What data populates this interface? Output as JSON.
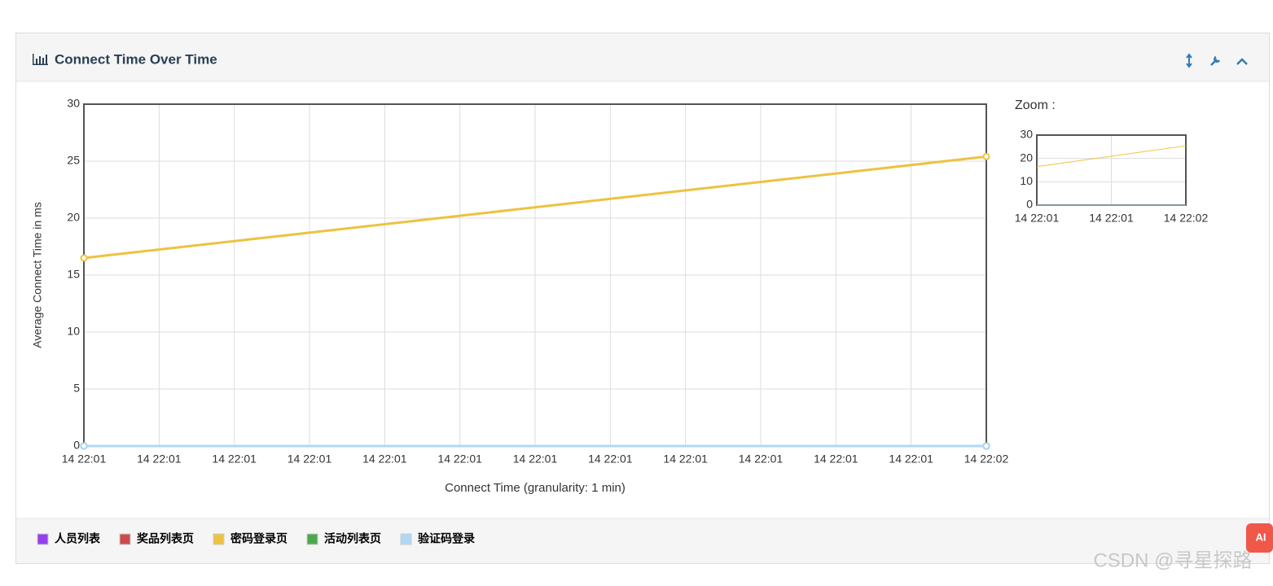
{
  "panel": {
    "title": "Connect Time Over Time"
  },
  "chart_data": {
    "type": "line",
    "x": [
      "14 22:01",
      "14 22:02"
    ],
    "xticks": [
      "14 22:01",
      "14 22:01",
      "14 22:01",
      "14 22:01",
      "14 22:01",
      "14 22:01",
      "14 22:01",
      "14 22:01",
      "14 22:01",
      "14 22:01",
      "14 22:01",
      "14 22:01",
      "14 22:02"
    ],
    "xlabel": "Connect Time (granularity: 1 min)",
    "ylabel": "Average Connect Time in ms",
    "ylim": [
      0,
      30
    ],
    "yticks": [
      0,
      5,
      10,
      15,
      20,
      25,
      30
    ],
    "grid": true,
    "series": [
      {
        "name": "人员列表",
        "color": "#9440ed",
        "values": [
          0,
          0
        ]
      },
      {
        "name": "奖品列表页",
        "color": "#cb4b4b",
        "values": [
          0,
          0
        ]
      },
      {
        "name": "密码登录页",
        "color": "#edc240",
        "values": [
          16.5,
          25.4
        ]
      },
      {
        "name": "活动列表页",
        "color": "#4da74d",
        "values": [
          0,
          0
        ]
      },
      {
        "name": "验证码登录",
        "color": "#afd8f8",
        "values": [
          0,
          0
        ]
      }
    ],
    "zoom": {
      "label": "Zoom :",
      "ylim": [
        0,
        30
      ],
      "yticks": [
        0,
        10,
        20,
        30
      ],
      "xticks": [
        "14 22:01",
        "14 22:01",
        "14 22:02"
      ]
    }
  },
  "watermark": "CSDN @寻星探路",
  "ai_badge": "AI"
}
